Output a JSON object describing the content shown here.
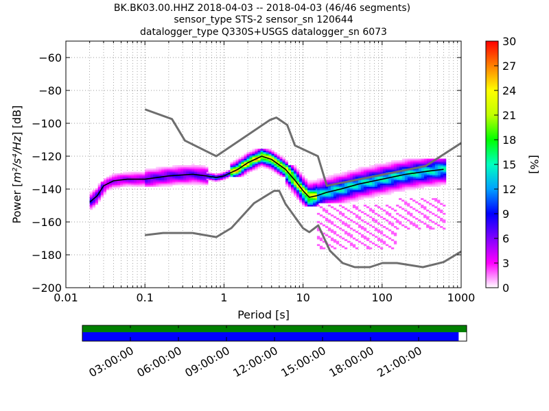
{
  "chart_data": {
    "type": "heatmap",
    "title": [
      "BK.BK03.00.HHZ   2018-04-03 -- 2018-04-03  (46/46 segments)",
      "sensor_type STS-2 sensor_sn 120644",
      "datalogger_type Q330S+USGS datalogger_sn 6073"
    ],
    "xlabel": "Period [s]",
    "ylabel_prefix": "Power [",
    "ylabel_math": "m²/s⁴/Hz",
    "ylabel_suffix": "] [dB]",
    "x_scale": "log",
    "xlim": [
      0.01,
      1000
    ],
    "ylim": [
      -200,
      -50
    ],
    "xticks": [
      0.01,
      0.1,
      1,
      10,
      100,
      1000
    ],
    "xtick_labels": [
      "0.01",
      "0.1",
      "1",
      "10",
      "100",
      "1000"
    ],
    "yticks": [
      -60,
      -80,
      -100,
      -120,
      -140,
      -160,
      -180,
      -200
    ],
    "ytick_labels": [
      "−60",
      "−80",
      "−100",
      "−120",
      "−140",
      "−160",
      "−180",
      "−200"
    ],
    "grid": true,
    "colorbar": {
      "label": "[%]",
      "range": [
        0,
        30
      ],
      "ticks": [
        0,
        3,
        6,
        9,
        12,
        15,
        18,
        21,
        24,
        27,
        30
      ],
      "tick_labels": [
        "0",
        "3",
        "6",
        "9",
        "12",
        "15",
        "18",
        "21",
        "24",
        "27",
        "30"
      ],
      "colormap": [
        "#ffffff",
        "#ff00ff",
        "#8000ff",
        "#0000ff",
        "#00a0ff",
        "#00ffc0",
        "#00ff00",
        "#c0ff00",
        "#ffff00",
        "#ff8000",
        "#ff0000"
      ]
    },
    "noise_models": {
      "high": [
        [
          0.1,
          -91.5
        ],
        [
          0.22,
          -97.4
        ],
        [
          0.32,
          -110.5
        ],
        [
          0.8,
          -120
        ],
        [
          3.8,
          -98
        ],
        [
          4.6,
          -96.5
        ],
        [
          6.3,
          -101
        ],
        [
          7.9,
          -113.5
        ],
        [
          15.4,
          -120
        ],
        [
          20,
          -138
        ],
        [
          354.8,
          -126
        ],
        [
          1000,
          -112
        ]
      ],
      "low": [
        [
          0.1,
          -168
        ],
        [
          0.17,
          -166.7
        ],
        [
          0.4,
          -166.7
        ],
        [
          0.8,
          -169.2
        ],
        [
          1.24,
          -163.7
        ],
        [
          2.4,
          -148.6
        ],
        [
          4.3,
          -141.1
        ],
        [
          5,
          -141.1
        ],
        [
          6,
          -149
        ],
        [
          10,
          -163.8
        ],
        [
          12,
          -166.2
        ],
        [
          15.6,
          -162.1
        ],
        [
          21.9,
          -177.5
        ],
        [
          31.6,
          -185
        ],
        [
          45,
          -187.5
        ],
        [
          70,
          -187.5
        ],
        [
          101,
          -185
        ],
        [
          154,
          -185
        ],
        [
          328,
          -187.5
        ],
        [
          600,
          -184.4
        ],
        [
          1000,
          -178
        ]
      ]
    },
    "mean_curve": [
      [
        0.02,
        -148
      ],
      [
        0.025,
        -144
      ],
      [
        0.03,
        -138
      ],
      [
        0.04,
        -135
      ],
      [
        0.06,
        -134
      ],
      [
        0.1,
        -134
      ],
      [
        0.2,
        -132
      ],
      [
        0.4,
        -131
      ],
      [
        0.6,
        -132
      ],
      [
        0.8,
        -133
      ],
      [
        1,
        -132
      ],
      [
        1.5,
        -128
      ],
      [
        2,
        -124
      ],
      [
        3,
        -120
      ],
      [
        4,
        -122
      ],
      [
        6,
        -128
      ],
      [
        8,
        -135
      ],
      [
        10,
        -141
      ],
      [
        12,
        -145
      ],
      [
        15,
        -144
      ],
      [
        20,
        -142
      ],
      [
        30,
        -140
      ],
      [
        50,
        -137
      ],
      [
        100,
        -134
      ],
      [
        200,
        -131
      ],
      [
        400,
        -129
      ],
      [
        600,
        -128
      ]
    ],
    "density_bands": [
      {
        "period_range": [
          0.02,
          0.03
        ],
        "power_range": [
          -152,
          -136
        ],
        "peak_percent": 9
      },
      {
        "period_range": [
          0.03,
          0.1
        ],
        "power_range": [
          -140,
          -126
        ],
        "peak_percent": 6
      },
      {
        "period_range": [
          0.1,
          0.6
        ],
        "power_range": [
          -138,
          -120
        ],
        "peak_percent": 8
      },
      {
        "period_range": [
          0.6,
          1.2
        ],
        "power_range": [
          -136,
          -129
        ],
        "peak_percent": 12
      },
      {
        "period_range": [
          1.2,
          6
        ],
        "power_range": [
          -132,
          -116
        ],
        "peak_percent": 27
      },
      {
        "period_range": [
          6,
          15
        ],
        "power_range": [
          -150,
          -126
        ],
        "peak_percent": 25
      },
      {
        "period_range": [
          15,
          600
        ],
        "power_range": [
          -148,
          -122
        ],
        "peak_percent": 16
      },
      {
        "period_range": [
          15,
          150
        ],
        "power_range": [
          -176,
          -150
        ],
        "peak_percent": 2
      },
      {
        "period_range": [
          150,
          600
        ],
        "power_range": [
          -164,
          -146
        ],
        "peak_percent": 2
      }
    ],
    "timeline": {
      "tick_labels": [
        "03:00:00",
        "06:00:00",
        "09:00:00",
        "12:00:00",
        "15:00:00",
        "18:00:00",
        "21:00:00"
      ],
      "tick_hours": [
        3,
        6,
        9,
        12,
        15,
        18,
        21
      ],
      "span_hours": [
        0,
        24
      ],
      "data_coverage": [
        0,
        23.5
      ],
      "psd_coverage": [
        0,
        24
      ],
      "colors": {
        "data": "#0000ff",
        "psd": "#008000"
      }
    }
  }
}
